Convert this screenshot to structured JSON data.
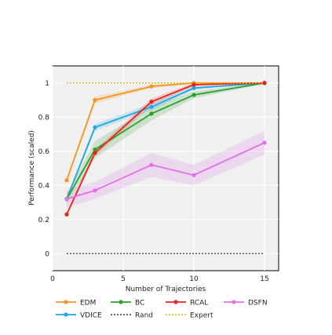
{
  "chart_data": {
    "type": "line",
    "xlabel": "Number of Trajectories",
    "ylabel": "Performance (scaled)",
    "xlim": [
      0,
      16
    ],
    "ylim": [
      -0.1,
      1.1
    ],
    "x_ticks": [
      0,
      5,
      10,
      15
    ],
    "x_tick_labels": [
      "0",
      "5",
      "10",
      "15"
    ],
    "y_ticks": [
      0,
      0.2,
      0.4,
      0.6,
      0.8,
      1
    ],
    "y_tick_labels": [
      "0",
      "0.2",
      "0.4",
      "0.6",
      "0.8",
      "1"
    ],
    "grid": true,
    "legend_position": "bottom",
    "series": [
      {
        "name": "EDM",
        "color": "#f7941d",
        "style": "solid-markers",
        "x": [
          1,
          3,
          7,
          10,
          15
        ],
        "y": [
          0.43,
          0.9,
          0.98,
          1.0,
          1.0
        ],
        "band": [
          0.01,
          0.02,
          0.01,
          0.005,
          0.0
        ]
      },
      {
        "name": "VDICE",
        "color": "#1ca8e0",
        "style": "solid-markers",
        "x": [
          1,
          3,
          7,
          10,
          15
        ],
        "y": [
          0.32,
          0.74,
          0.86,
          0.97,
          1.0
        ],
        "band": [
          0.01,
          0.02,
          0.02,
          0.01,
          0.0
        ]
      },
      {
        "name": "BC",
        "color": "#2ca02c",
        "style": "solid-markers",
        "x": [
          1,
          3,
          7,
          10,
          15
        ],
        "y": [
          0.32,
          0.61,
          0.82,
          0.93,
          1.0
        ],
        "band": [
          0.03,
          0.05,
          0.04,
          0.02,
          0.005
        ]
      },
      {
        "name": "Rand",
        "color": "#555555",
        "style": "dotted",
        "x": [
          1,
          15
        ],
        "y": [
          0.0,
          0.0
        ],
        "band": [
          0,
          0
        ]
      },
      {
        "name": "RCAL",
        "color": "#e8231e",
        "style": "solid-markers",
        "x": [
          1,
          3,
          7,
          10,
          15
        ],
        "y": [
          0.23,
          0.59,
          0.89,
          0.99,
          1.0
        ],
        "band": [
          0.01,
          0.02,
          0.02,
          0.01,
          0.0
        ]
      },
      {
        "name": "Expert",
        "color": "#d8c21a",
        "style": "dotted",
        "x": [
          1,
          15
        ],
        "y": [
          1.0,
          1.0
        ],
        "band": [
          0,
          0
        ]
      },
      {
        "name": "DSFN",
        "color": "#e070e8",
        "style": "solid-markers",
        "x": [
          1,
          3,
          7,
          10,
          15
        ],
        "y": [
          0.32,
          0.37,
          0.52,
          0.46,
          0.65
        ],
        "band": [
          0.05,
          0.05,
          0.07,
          0.06,
          0.07
        ]
      }
    ],
    "legend_order": [
      "EDM",
      "BC",
      "RCAL",
      "DSFN",
      "VDICE",
      "Rand",
      "Expert"
    ]
  }
}
